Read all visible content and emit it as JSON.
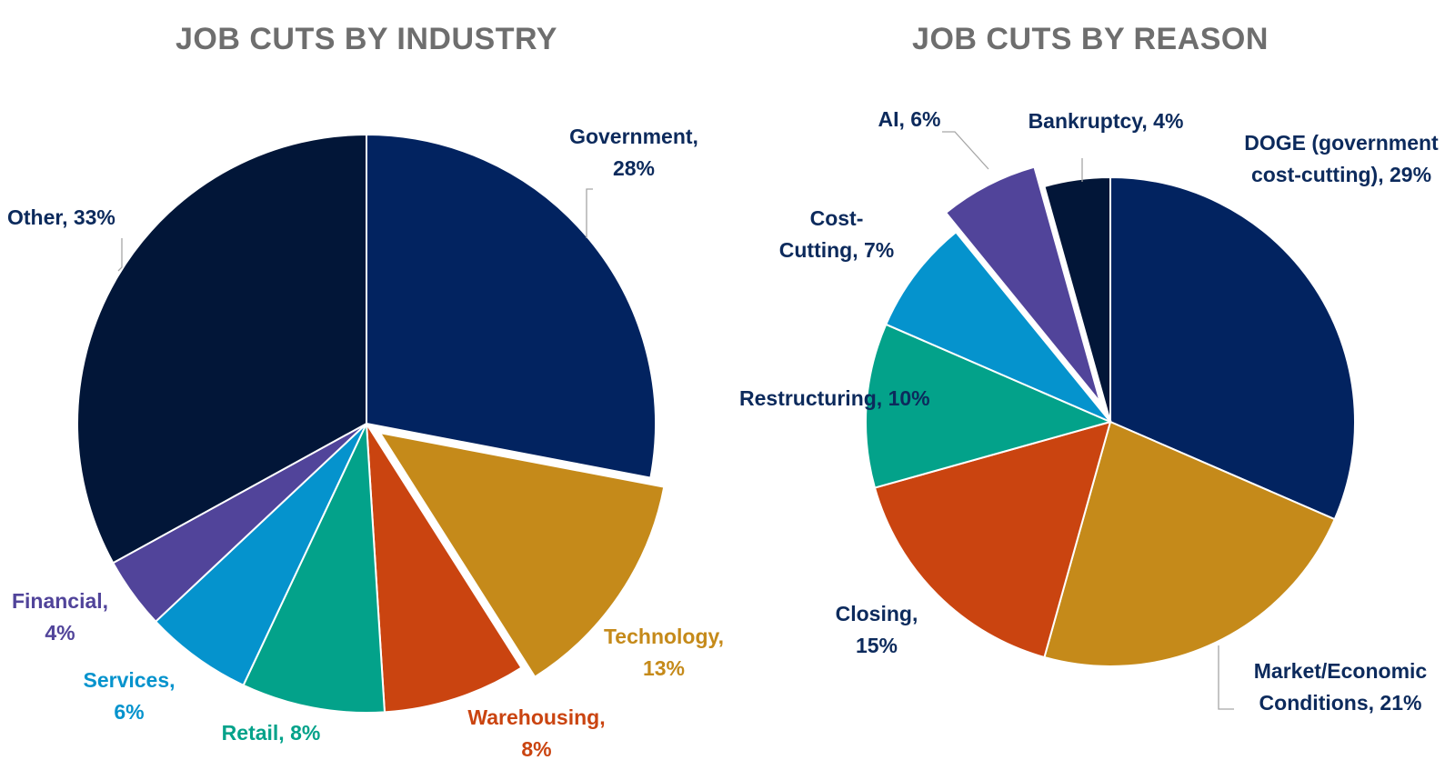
{
  "chart_data": [
    {
      "type": "pie",
      "title": "JOB CUTS BY INDUSTRY",
      "slices": [
        {
          "name": "Government",
          "value": 28,
          "label": [
            "Government,",
            "28%"
          ],
          "color": "#022360",
          "label_color": "#0c2a5c"
        },
        {
          "name": "Technology",
          "value": 13,
          "label": [
            "Technology,",
            "13%"
          ],
          "color": "#c58a1a",
          "label_color": "#c58a1a",
          "exploded": true
        },
        {
          "name": "Warehousing",
          "value": 8,
          "label": [
            "Warehousing,",
            "8%"
          ],
          "color": "#ca4410",
          "label_color": "#ca4410"
        },
        {
          "name": "Retail",
          "value": 8,
          "label": [
            "Retail, 8%"
          ],
          "color": "#03a28a",
          "label_color": "#03a28a"
        },
        {
          "name": "Services",
          "value": 6,
          "label": [
            "Services,",
            "6%"
          ],
          "color": "#0593cd",
          "label_color": "#0593cd"
        },
        {
          "name": "Financial",
          "value": 4,
          "label": [
            "Financial,",
            "4%"
          ],
          "color": "#51449a",
          "label_color": "#51449a"
        },
        {
          "name": "Other",
          "value": 33,
          "label": [
            "Other, 33%"
          ],
          "color": "#021638",
          "label_color": "#0c2a5c"
        }
      ]
    },
    {
      "type": "pie",
      "title": "JOB CUTS BY REASON",
      "slices": [
        {
          "name": "DOGE (government cost-cutting)",
          "value": 29,
          "label": [
            "DOGE (government",
            "cost-cutting), 29%"
          ],
          "color": "#022360",
          "label_color": "#0c2a5c"
        },
        {
          "name": "Market/Economic Conditions",
          "value": 21,
          "label": [
            "Market/Economic",
            "Conditions, 21%"
          ],
          "color": "#c58a1a",
          "label_color": "#0c2a5c"
        },
        {
          "name": "Closing",
          "value": 15,
          "label": [
            "Closing,",
            "15%"
          ],
          "color": "#ca4410",
          "label_color": "#0c2a5c"
        },
        {
          "name": "Restructuring",
          "value": 10,
          "label": [
            "Restructuring, 10%"
          ],
          "color": "#03a28a",
          "label_color": "#0c2a5c"
        },
        {
          "name": "Cost-Cutting",
          "value": 7,
          "label": [
            "Cost-",
            "Cutting, 7%"
          ],
          "color": "#0593cd",
          "label_color": "#0c2a5c"
        },
        {
          "name": "AI",
          "value": 6,
          "label": [
            "AI, 6%"
          ],
          "color": "#51449a",
          "label_color": "#0c2a5c",
          "exploded": true
        },
        {
          "name": "Bankruptcy",
          "value": 4,
          "label": [
            "Bankruptcy, 4%"
          ],
          "color": "#021638",
          "label_color": "#0c2a5c"
        }
      ]
    }
  ]
}
